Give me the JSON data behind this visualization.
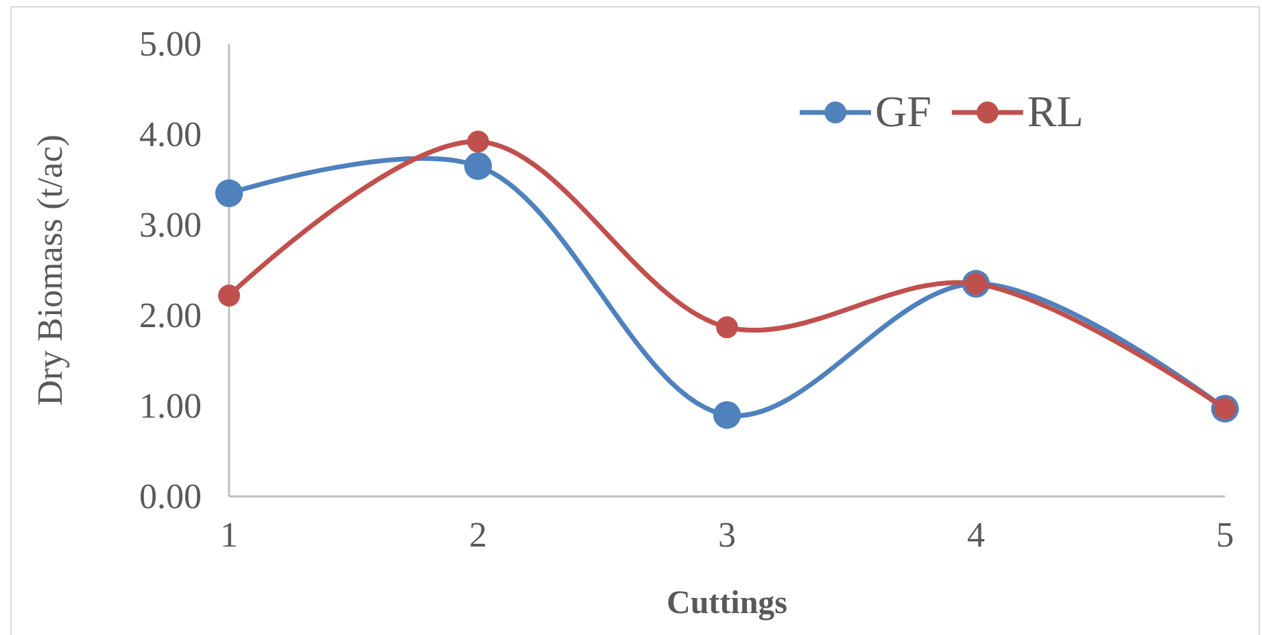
{
  "chart_data": {
    "type": "line",
    "xlabel": "Cuttings",
    "ylabel": "Dry Biomass (t/ac)",
    "categories": [
      "1",
      "2",
      "3",
      "4",
      "5"
    ],
    "series": [
      {
        "name": "GF",
        "color": "#4f81bd",
        "values": [
          3.35,
          3.65,
          0.9,
          2.35,
          0.97
        ]
      },
      {
        "name": "RL",
        "color": "#c0504d",
        "values": [
          2.22,
          3.92,
          1.87,
          2.35,
          0.97
        ]
      }
    ],
    "ylim": [
      0,
      5
    ],
    "yticks": [
      {
        "value": 0,
        "label": "0.00"
      },
      {
        "value": 1,
        "label": "1.00"
      },
      {
        "value": 2,
        "label": "2.00"
      },
      {
        "value": 3,
        "label": "3.00"
      },
      {
        "value": 4,
        "label": "4.00"
      },
      {
        "value": 5,
        "label": "5.00"
      }
    ],
    "grid": false,
    "legend": "top right",
    "marker": "circle",
    "line_style": "solid"
  }
}
